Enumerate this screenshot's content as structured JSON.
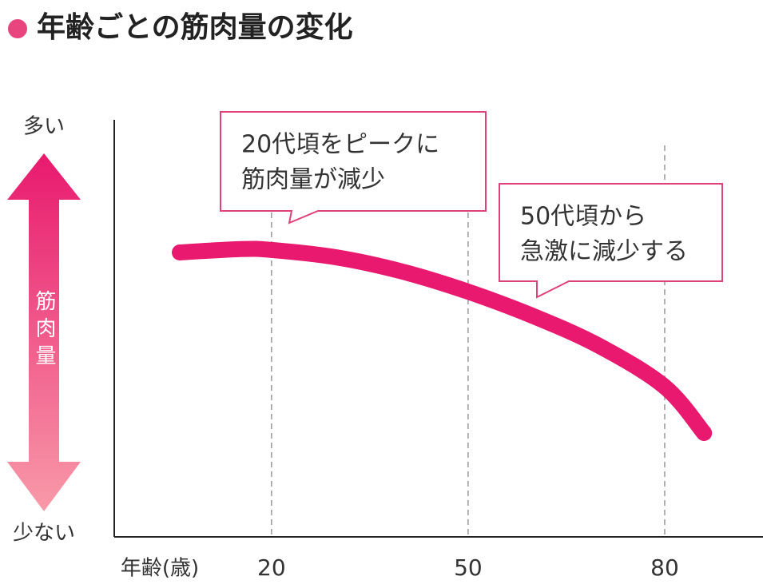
{
  "chart_data": {
    "type": "line",
    "title": "年齢ごとの筋肉量の変化",
    "ylabel": "筋肉量",
    "y_high_label": "多い",
    "y_low_label": "少ない",
    "xlabel": "年齢(歳)",
    "x": [
      6,
      15,
      20,
      30,
      40,
      50,
      60,
      70,
      80,
      86
    ],
    "values": [
      68.2,
      69,
      68.8,
      67,
      63.6,
      58.8,
      52.9,
      45.8,
      36,
      24.9
    ],
    "color": "#e8196e",
    "xlim": [
      -4,
      95
    ],
    "ylim": [
      0,
      100
    ],
    "xticks": [
      20,
      50,
      80
    ],
    "grid": true,
    "annotations": [
      [
        "20代頃をピークに",
        "筋肉量が減少"
      ],
      [
        "50代頃から",
        "急激に減少する"
      ]
    ]
  }
}
